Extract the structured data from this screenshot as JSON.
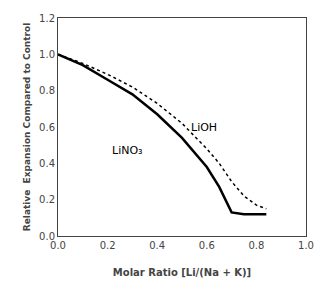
{
  "chart_data": {
    "type": "line",
    "xlabel": "Molar Ratio [Li/(Na + K)]",
    "ylabel": "Relative  Expansion Compared to Control",
    "x": [
      0.0,
      0.1,
      0.2,
      0.3,
      0.4,
      0.5,
      0.6,
      0.65,
      0.7,
      0.75,
      0.8,
      0.84
    ],
    "series": [
      {
        "color": "#000000",
        "line_style": "solid",
        "values": [
          1.0,
          0.94,
          0.86,
          0.78,
          0.67,
          0.54,
          0.38,
          0.27,
          0.13,
          0.12,
          0.12,
          0.12
        ]
      },
      {
        "color": "#000000",
        "line_style": "dotted",
        "values": [
          1.0,
          0.95,
          0.89,
          0.82,
          0.73,
          0.62,
          0.48,
          0.4,
          0.3,
          0.22,
          0.17,
          0.15
        ]
      }
    ],
    "annotations": [
      {
        "text": "LiNO₃",
        "x": 0.21,
        "y": 0.47
      },
      {
        "text": "LiOH",
        "x": 0.53,
        "y": 0.6
      }
    ],
    "xlim": [
      0.0,
      1.0
    ],
    "ylim": [
      0.0,
      1.2
    ],
    "xticks": [
      {
        "value": 0,
        "label": "0.0"
      },
      0.2,
      0.4,
      0.6,
      0.8,
      {
        "value": 1,
        "label": "1.0"
      }
    ],
    "yticks": [
      {
        "value": 0,
        "label": "0.0"
      },
      0.2,
      0.4,
      0.6,
      0.8,
      {
        "value": 1,
        "label": "1.0"
      },
      1.2
    ],
    "grid": false
  }
}
